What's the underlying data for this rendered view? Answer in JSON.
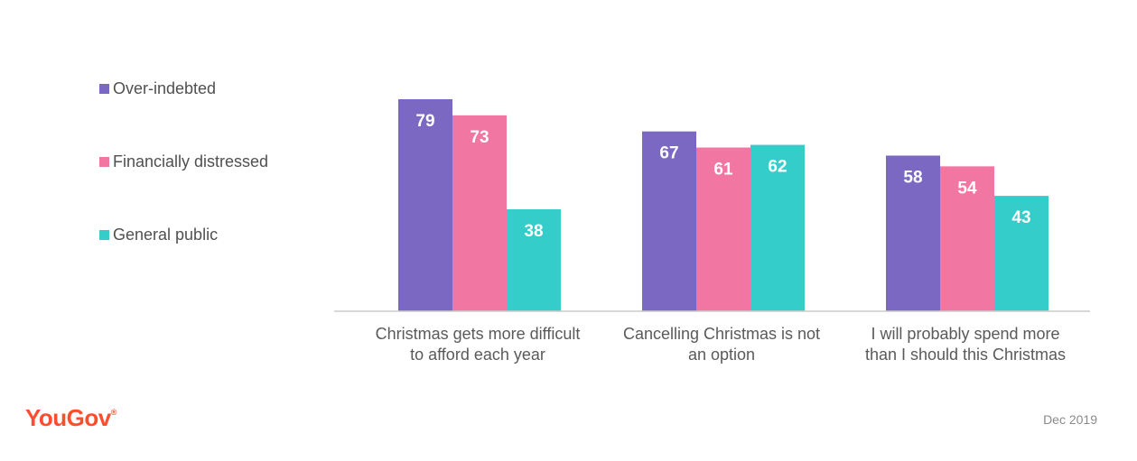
{
  "chart_data": {
    "type": "bar",
    "categories": [
      [
        "Christmas gets more difficult",
        "to afford each year"
      ],
      [
        "Cancelling Christmas is not",
        "an option"
      ],
      [
        "I will probably spend more",
        "than I should this Christmas"
      ]
    ],
    "series": [
      {
        "name": "Over-indebted",
        "color": "#7b68c2",
        "values": [
          79,
          67,
          58
        ]
      },
      {
        "name": "Financially distressed",
        "color": "#f276a2",
        "values": [
          73,
          61,
          54
        ]
      },
      {
        "name": "General public",
        "color": "#35cdc9",
        "values": [
          38,
          62,
          43
        ]
      }
    ],
    "ylim": [
      0,
      79
    ],
    "grid": false,
    "legend_position": "left",
    "data_labels": true
  },
  "branding": {
    "logo_text": "YouGov",
    "logo_mark": "®",
    "logo_color": "#ff4d2d",
    "date": "Dec 2019"
  },
  "colors": {
    "axis": "#cccccc",
    "category_label": "#5a5a5a",
    "value_label": "#ffffff"
  }
}
